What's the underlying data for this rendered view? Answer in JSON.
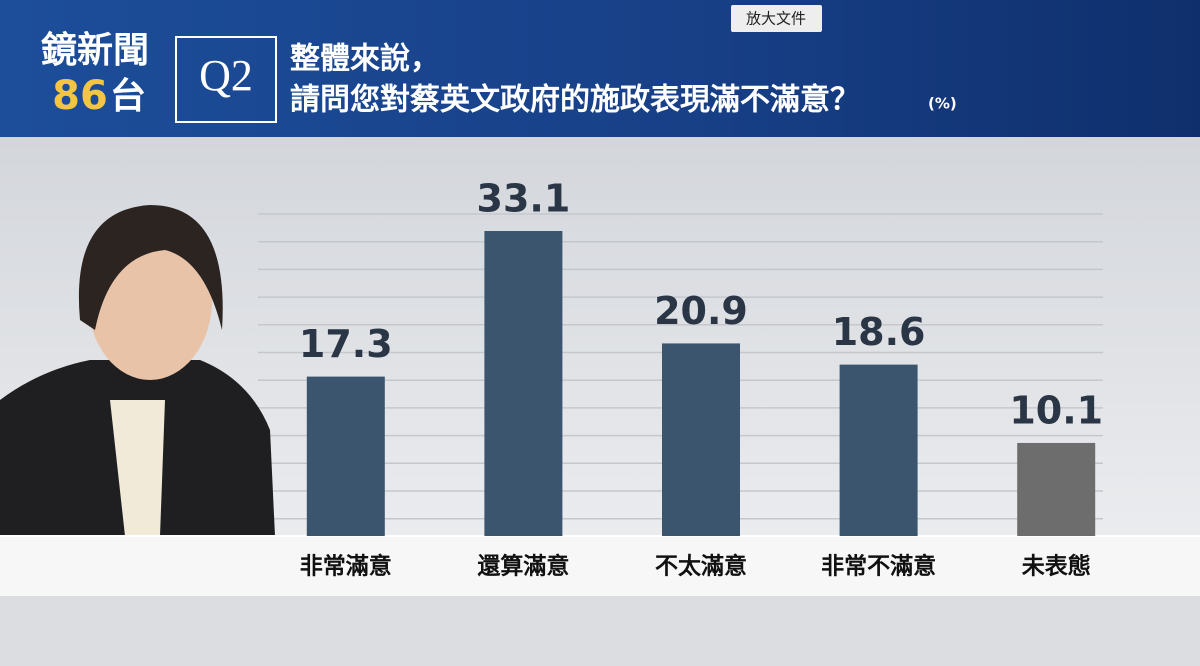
{
  "header": {
    "logo": {
      "name": "鏡新聞",
      "channel_number": "86",
      "channel_suffix": "台"
    },
    "question_number": "Q2",
    "question_line1": "整體來說，",
    "question_line2": "請問您對蔡英文政府的施政表現滿不滿意？",
    "unit": "(%)"
  },
  "toolbar": {
    "button": "放大文件"
  },
  "chart_data": {
    "type": "bar",
    "categories": [
      "非常滿意",
      "還算滿意",
      "不太滿意",
      "非常不滿意",
      "未表態"
    ],
    "values": [
      17.3,
      33.1,
      20.9,
      18.6,
      10.1
    ],
    "colors": [
      "#3b556f",
      "#3b556f",
      "#3b556f",
      "#3b556f",
      "#6d6d6d"
    ],
    "ylim": [
      0,
      35
    ]
  }
}
